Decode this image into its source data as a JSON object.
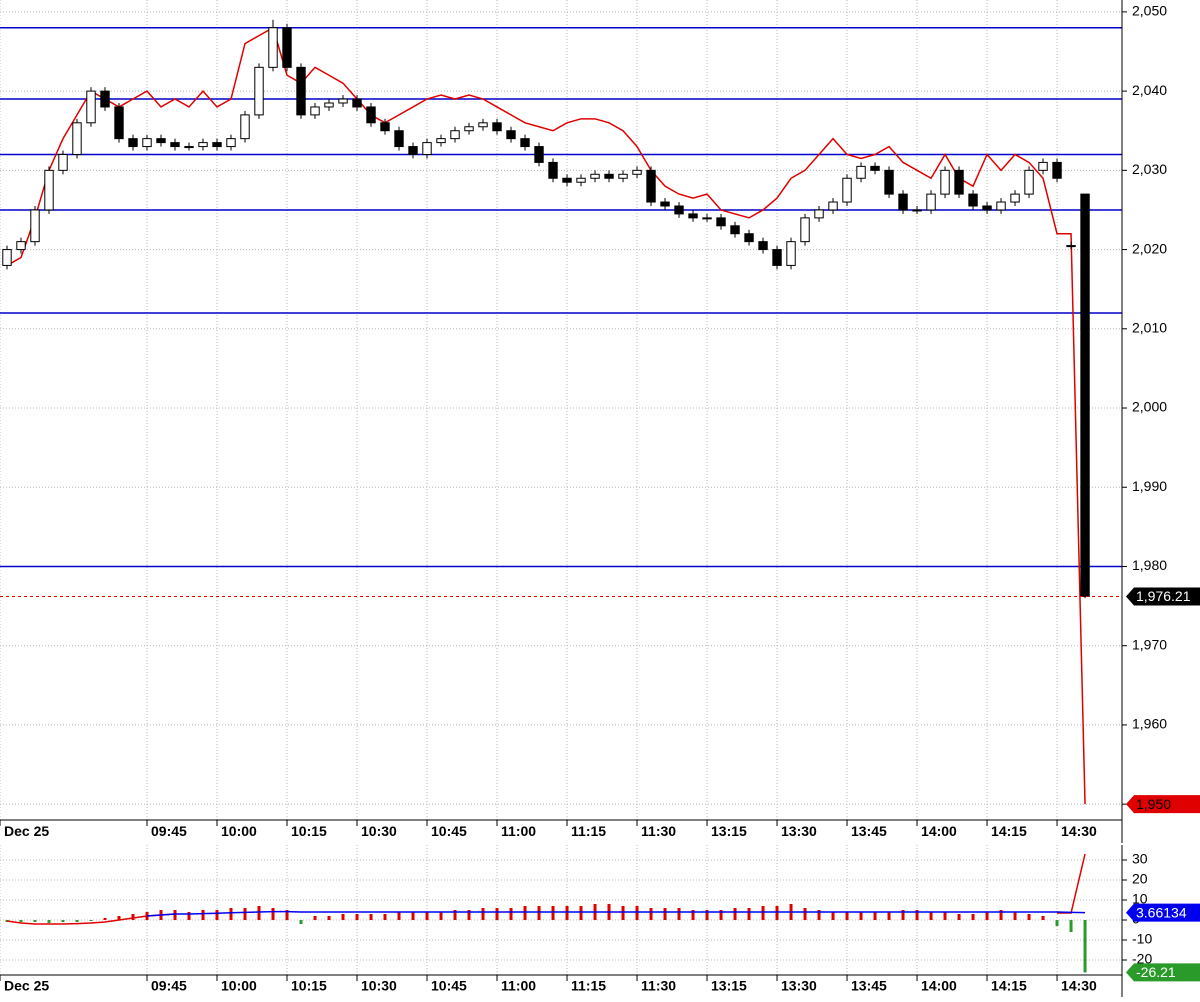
{
  "chart_data": [
    {
      "type": "candlestick",
      "xlim": [
        -0.5,
        79.64
      ],
      "xticks": [
        {
          "value": -0.5,
          "label": "Dec 25"
        },
        {
          "value": 10,
          "label": "09:45"
        },
        {
          "value": 15,
          "label": "10:00"
        },
        {
          "value": 20,
          "label": "10:15"
        },
        {
          "value": 25,
          "label": "10:30"
        },
        {
          "value": 30,
          "label": "10:45"
        },
        {
          "value": 35,
          "label": "11:00"
        },
        {
          "value": 40,
          "label": "11:15"
        },
        {
          "value": 45,
          "label": "11:30"
        },
        {
          "value": 50,
          "label": "13:15"
        },
        {
          "value": 55,
          "label": "13:30"
        },
        {
          "value": 60,
          "label": "13:45"
        },
        {
          "value": 65,
          "label": "14:00"
        },
        {
          "value": 70,
          "label": "14:15"
        },
        {
          "value": 75,
          "label": "14:30"
        }
      ],
      "ylim": [
        1948,
        2051.5
      ],
      "yticks": [
        {
          "value": 2050,
          "label": "2,050"
        },
        {
          "value": 2040,
          "label": "2,040"
        },
        {
          "value": 2030,
          "label": "2,030"
        },
        {
          "value": 2020,
          "label": "2,020"
        },
        {
          "value": 2010,
          "label": "2,010"
        },
        {
          "value": 2000,
          "label": "2,000"
        },
        {
          "value": 1990,
          "label": "1,990"
        },
        {
          "value": 1980,
          "label": "1,980"
        },
        {
          "value": 1970,
          "label": "1,970"
        },
        {
          "value": 1960,
          "label": "1,960"
        },
        {
          "value": 1950,
          "label": "1,950"
        }
      ],
      "grid": true,
      "up_color": "#ffffff",
      "down_color": "#000000",
      "open": [
        2018,
        2020,
        2021,
        2025,
        2030,
        2032,
        2036,
        2040,
        2038,
        2034,
        2033,
        2034,
        2033.5,
        2033,
        2033,
        2033.5,
        2033,
        2034,
        2037,
        2043,
        2048,
        2043,
        2037,
        2038,
        2038.5,
        2039,
        2038,
        2036,
        2035,
        2033,
        2032,
        2033.5,
        2034,
        2035,
        2035.5,
        2036,
        2035,
        2034,
        2033,
        2031,
        2029,
        2028.5,
        2029,
        2029.5,
        2029,
        2029.5,
        2030,
        2026,
        2025.5,
        2024.5,
        2024,
        2024,
        2023,
        2022,
        2021,
        2020,
        2018,
        2021,
        2024,
        2025,
        2026,
        2029,
        2030.5,
        2030,
        2027,
        2025,
        2025,
        2027,
        2030,
        2027,
        2025.5,
        2025,
        2026,
        2027,
        2030,
        2031,
        2020.5,
        2027
      ],
      "high": [
        2020.5,
        2021.5,
        2025.5,
        2030.5,
        2032.5,
        2036.5,
        2040.5,
        2040.5,
        2038.5,
        2034.5,
        2034.5,
        2034.5,
        2034,
        2033.5,
        2034,
        2034,
        2034.5,
        2037.5,
        2043.5,
        2049,
        2048.5,
        2043.5,
        2038.5,
        2039,
        2039.5,
        2039.5,
        2038.5,
        2036.5,
        2035.5,
        2033.5,
        2034,
        2034.5,
        2035.5,
        2036,
        2036.5,
        2036.5,
        2035.5,
        2034.5,
        2033.5,
        2031.5,
        2029.5,
        2029.5,
        2030,
        2030,
        2030,
        2030.5,
        2030.5,
        2026.5,
        2026,
        2025,
        2024.5,
        2024.5,
        2023.5,
        2022.5,
        2021.5,
        2020.5,
        2021.5,
        2024.5,
        2025.5,
        2026.5,
        2029.5,
        2031,
        2031,
        2030.5,
        2027.5,
        2025.5,
        2027.5,
        2030.5,
        2030.5,
        2027.5,
        2026,
        2026.5,
        2027.5,
        2030.5,
        2031.5,
        2031.5,
        2021,
        2027
      ],
      "low": [
        2017.5,
        2019.5,
        2020.5,
        2024.5,
        2029.5,
        2031.5,
        2035.5,
        2037.5,
        2033.5,
        2032.5,
        2032.5,
        2033,
        2032.5,
        2032.5,
        2032.5,
        2032.5,
        2032.5,
        2033.5,
        2036.5,
        2042.5,
        2042.5,
        2036.5,
        2036.5,
        2037.5,
        2038,
        2037.5,
        2035.5,
        2034.5,
        2032.5,
        2031.5,
        2031.5,
        2033,
        2033.5,
        2034.5,
        2035,
        2034.5,
        2033.5,
        2032.5,
        2030.5,
        2028.5,
        2028,
        2028,
        2028.5,
        2028.5,
        2028.5,
        2029,
        2025.5,
        2025,
        2024,
        2023.5,
        2023.5,
        2022.5,
        2021.5,
        2020.5,
        2019.5,
        2017.5,
        2017.5,
        2020.5,
        2023.5,
        2024.5,
        2025.5,
        2028.5,
        2029.5,
        2026.5,
        2024.5,
        2024.5,
        2024.5,
        2026.5,
        2026.5,
        2025,
        2024.5,
        2024.5,
        2025.5,
        2026.5,
        2029.5,
        2028.5,
        2020,
        1976
      ],
      "close": [
        2020,
        2021,
        2025,
        2030,
        2032,
        2036,
        2040,
        2038,
        2034,
        2033,
        2034,
        2033.5,
        2033,
        2033,
        2033.5,
        2033,
        2034,
        2037,
        2043,
        2048,
        2043,
        2037,
        2038,
        2038.5,
        2039,
        2038,
        2036,
        2035,
        2033,
        2032,
        2033.5,
        2034,
        2035,
        2035.5,
        2036,
        2035,
        2034,
        2033,
        2031,
        2029,
        2028.5,
        2029,
        2029.5,
        2029,
        2029.5,
        2030,
        2026,
        2025.5,
        2024.5,
        2024,
        2024,
        2023,
        2022,
        2021,
        2020,
        2018,
        2021,
        2024,
        2025,
        2026,
        2029,
        2030.5,
        2030,
        2027,
        2025,
        2025,
        2027,
        2030,
        2027,
        2025.5,
        2025,
        2026,
        2027,
        2030,
        2031,
        2029,
        2020.5,
        1976.21
      ],
      "lines": [
        {
          "color": "#e00000",
          "values": [
            2018,
            2019,
            2024,
            2030,
            2034,
            2037,
            2040,
            2039,
            2038,
            2039,
            2040,
            2038,
            2039,
            2038,
            2040,
            2038,
            2039,
            2046,
            2047,
            2048,
            2042,
            2041,
            2043,
            2042,
            2041,
            2039,
            2037,
            2036,
            2037,
            2038,
            2039,
            2039.5,
            2039,
            2039.5,
            2039,
            2038,
            2037,
            2036,
            2035.5,
            2035,
            2036,
            2036.5,
            2036.5,
            2036,
            2035,
            2033,
            2030,
            2028,
            2027,
            2026.5,
            2027,
            2025,
            2024.5,
            2024,
            2025,
            2026.5,
            2029,
            2030,
            2032,
            2034,
            2032,
            2031.5,
            2032,
            2033,
            2031,
            2030,
            2029,
            2032,
            2029,
            2028,
            2032,
            2030,
            2032,
            2031,
            2029,
            2022,
            2022,
            1950
          ]
        }
      ],
      "hline_color": "#0000cc",
      "hlines": [
        2048,
        2039,
        2032,
        2025,
        2012,
        1980
      ],
      "markers": [
        {
          "value": 1976.21,
          "label": "1,976.21",
          "color": "#000000",
          "text_color": "#ffffff",
          "dashed": true,
          "dash_color": "#e00000"
        },
        {
          "value": 1950,
          "label": "1,950",
          "color": "#e00000",
          "text_color": "#000000",
          "dashed": false
        }
      ]
    },
    {
      "type": "bar",
      "xlim": [
        -0.5,
        79.64
      ],
      "xticks": [
        {
          "value": -0.5,
          "label": "Dec 25"
        },
        {
          "value": 10,
          "label": "09:45"
        },
        {
          "value": 15,
          "label": "10:00"
        },
        {
          "value": 20,
          "label": "10:15"
        },
        {
          "value": 25,
          "label": "10:30"
        },
        {
          "value": 30,
          "label": "10:45"
        },
        {
          "value": 35,
          "label": "11:00"
        },
        {
          "value": 40,
          "label": "11:15"
        },
        {
          "value": 45,
          "label": "11:30"
        },
        {
          "value": 50,
          "label": "13:15"
        },
        {
          "value": 55,
          "label": "13:30"
        },
        {
          "value": 60,
          "label": "13:45"
        },
        {
          "value": 65,
          "label": "14:00"
        },
        {
          "value": 70,
          "label": "14:15"
        },
        {
          "value": 75,
          "label": "14:30"
        }
      ],
      "ylim": [
        -27.5,
        37.5
      ],
      "yticks": [
        30,
        20,
        10,
        0,
        -10,
        -20
      ],
      "grid": true,
      "up_color": "#e00000",
      "down_color": "#2a9a2a",
      "values": [
        -1,
        -1,
        -1,
        -1.5,
        -1,
        -1,
        -0.5,
        1,
        2,
        3,
        4,
        5,
        5,
        4,
        5,
        5,
        6,
        6,
        7,
        6,
        5,
        -2,
        2,
        2,
        3,
        3,
        3,
        3,
        4,
        4,
        4,
        4,
        5,
        5,
        6,
        6,
        6,
        7,
        7,
        7,
        7,
        7,
        8,
        8,
        7,
        7,
        6,
        6,
        6,
        5,
        5,
        5,
        6,
        6,
        7,
        7,
        8,
        6,
        5,
        4,
        4,
        4,
        4,
        4,
        5,
        5,
        4,
        4,
        3,
        3,
        4,
        5,
        4,
        3,
        2,
        -3,
        -6,
        -26.21
      ],
      "lines": [
        {
          "color": "#e00000",
          "values": [
            -0.5,
            -1.5,
            -2,
            -2,
            -2,
            -1.8,
            -1.5,
            -1,
            0,
            1,
            2,
            2.5,
            3,
            null,
            null,
            null,
            null,
            null,
            null,
            null,
            null,
            null,
            null,
            null,
            null,
            null,
            null,
            null,
            null,
            null,
            null,
            null,
            null,
            null,
            null,
            null,
            null,
            null,
            null,
            null,
            null,
            null,
            null,
            null,
            null,
            null,
            null,
            null,
            null,
            null,
            null,
            null,
            null,
            null,
            null,
            null,
            null,
            null,
            null,
            null,
            null,
            null,
            null,
            null,
            null,
            null,
            null,
            null,
            null,
            null,
            null,
            null,
            null,
            null,
            null,
            3.5,
            3.5,
            33
          ]
        },
        {
          "color": "#0000ee",
          "values": [
            null,
            null,
            null,
            null,
            null,
            null,
            null,
            null,
            null,
            null,
            2,
            2.5,
            3,
            3,
            3.2,
            3.4,
            3.6,
            3.8,
            4,
            4.2,
            4.2,
            4,
            4,
            4,
            4,
            4,
            4,
            4,
            4,
            4,
            4,
            4,
            4,
            4,
            4,
            4,
            4,
            4,
            4,
            4,
            4,
            4,
            4,
            4,
            4,
            4,
            4,
            4,
            4,
            4,
            4,
            4,
            4,
            4,
            4,
            4,
            4,
            4,
            4,
            4,
            4,
            4,
            4,
            4,
            4,
            4,
            4,
            4,
            4,
            4,
            4,
            4,
            4,
            4,
            4,
            4,
            3.8,
            3.66134
          ]
        }
      ],
      "markers": [
        {
          "value": 3.66134,
          "label": "3.66134",
          "color": "#0000ee",
          "text_color": "#ffffff",
          "dashed": false
        },
        {
          "value": -26.21,
          "label": "-26.21",
          "color": "#2a9a2a",
          "text_color": "#ffffff",
          "dashed": false
        }
      ]
    }
  ]
}
